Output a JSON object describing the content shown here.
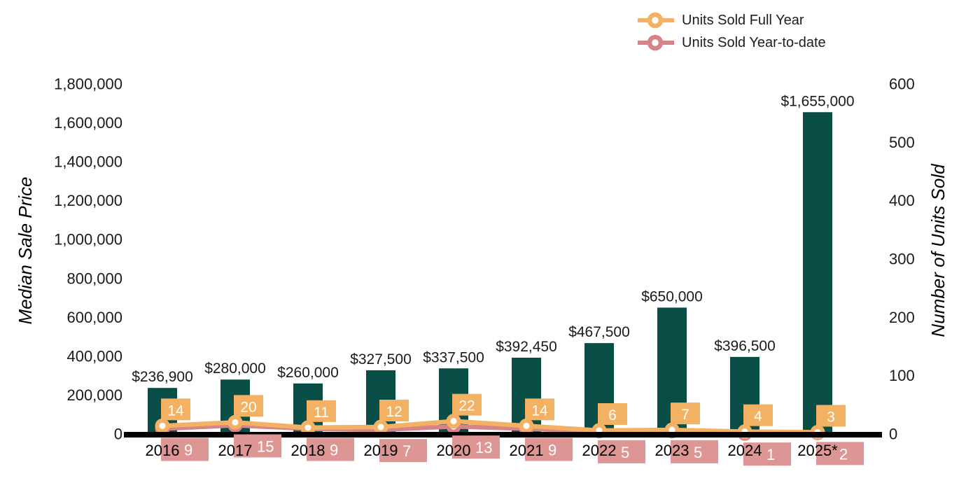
{
  "legend": [
    {
      "label": "Units Sold Full Year",
      "color": "#f3b164"
    },
    {
      "label": "Units Sold Year-to-date",
      "color": "#d7838a"
    }
  ],
  "colors": {
    "bar": "#094e46",
    "full_year_line": "#f3b164",
    "full_year_label_bg": "#f3b164",
    "ytd_line": "#d7838a",
    "ytd_label_bg": "#de9694",
    "axis_line": "#000000",
    "text": "#1a1a1a",
    "label_text": "#ffffff"
  },
  "chart_data": {
    "type": "bar+line combo with dual y-axes",
    "categories": [
      "2016",
      "2017",
      "2018",
      "2019",
      "2020",
      "2021",
      "2022",
      "2023",
      "2024",
      "2025*"
    ],
    "series": [
      {
        "name": "Median Sale Price",
        "type": "bar",
        "axis": "left",
        "values": [
          236900,
          280000,
          260000,
          327500,
          337500,
          392450,
          467500,
          650000,
          396500,
          1655000
        ],
        "labels": [
          "$236,900",
          "$280,000",
          "$260,000",
          "$327,500",
          "$337,500",
          "$392,450",
          "$467,500",
          "$650,000",
          "$396,500",
          "$1,655,000"
        ]
      },
      {
        "name": "Units Sold Full Year",
        "type": "line",
        "axis": "right",
        "values": [
          14,
          20,
          11,
          12,
          22,
          14,
          6,
          7,
          4,
          3
        ]
      },
      {
        "name": "Units Sold Year-to-date",
        "type": "line",
        "axis": "right",
        "values": [
          9,
          15,
          9,
          7,
          13,
          9,
          5,
          5,
          1,
          2
        ]
      }
    ],
    "left_axis": {
      "title": "Median Sale Price",
      "min": 0,
      "max": 1800000,
      "tick_values": [
        0,
        200000,
        400000,
        600000,
        800000,
        1000000,
        1200000,
        1400000,
        1600000,
        1800000
      ],
      "tick_labels": [
        "0",
        "200,000",
        "400,000",
        "600,000",
        "800,000",
        "1,000,000",
        "1,200,000",
        "1,400,000",
        "1,600,000",
        "1,800,000"
      ]
    },
    "right_axis": {
      "title": "Number of Units Sold",
      "min": 0,
      "max": 600,
      "tick_values": [
        0,
        100,
        200,
        300,
        400,
        500,
        600
      ],
      "tick_labels": [
        "0",
        "100",
        "200",
        "300",
        "400",
        "500",
        "600"
      ]
    },
    "legend_position": "top-right",
    "grid": false,
    "background": "#ffffff"
  }
}
